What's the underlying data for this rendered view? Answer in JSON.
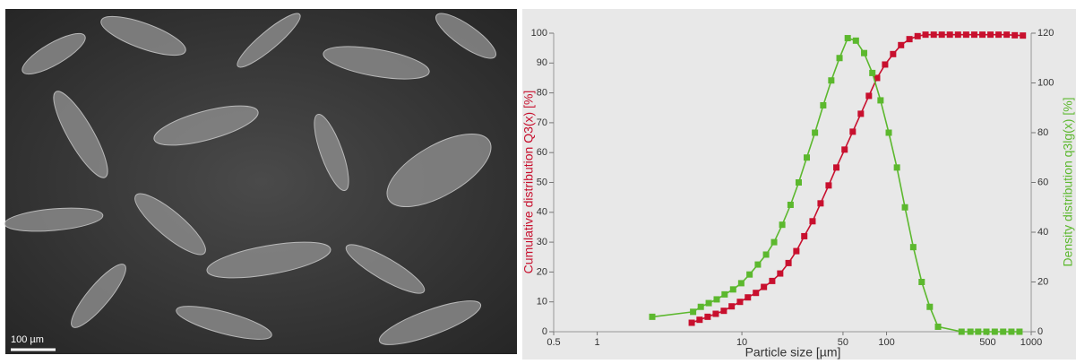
{
  "image": {
    "scale_bar": "100 µm"
  },
  "chart_data": {
    "type": "line",
    "xlabel": "Particle size [µm]",
    "ylabel": "Cumulative distribution Q3(x) [%]",
    "y2label": "Density distribution q3lg(x) [%]",
    "xscale": "log",
    "xlim": [
      0.5,
      1000
    ],
    "xticks": [
      0.5,
      1,
      10,
      50,
      100,
      500,
      1000
    ],
    "ylim": [
      0,
      100
    ],
    "yticks": [
      0,
      10,
      20,
      30,
      40,
      50,
      60,
      70,
      80,
      90,
      100
    ],
    "y2lim": [
      0,
      120
    ],
    "y2ticks": [
      0,
      20,
      40,
      60,
      80,
      100,
      120
    ],
    "grid": false,
    "ylabel_color": "#c8102e",
    "y2label_color": "#5cb82e",
    "series": [
      {
        "color": "#c8102e",
        "x": [
          4.5,
          5.1,
          5.8,
          6.6,
          7.5,
          8.5,
          9.7,
          11,
          12.5,
          14.2,
          16.2,
          18.4,
          21,
          23.8,
          27,
          30.8,
          35,
          39.8,
          45,
          51.3,
          58.4,
          66.4,
          75.5,
          86,
          97.7,
          111,
          126,
          144,
          164,
          186,
          212,
          241,
          274,
          312,
          355,
          404,
          460,
          523,
          595,
          677,
          770,
          876
        ],
        "values": [
          3,
          4,
          5,
          6,
          7,
          8.5,
          10,
          11.5,
          13,
          15,
          17,
          19.5,
          23,
          27,
          32,
          37,
          43,
          49,
          55,
          61,
          67,
          73,
          79,
          85,
          89.5,
          93,
          96,
          98,
          99,
          99.5,
          99.5,
          99.5,
          99.5,
          99.5,
          99.5,
          99.5,
          99.5,
          99.5,
          99.5,
          99.5,
          99.3,
          99.2
        ]
      },
      {
        "color": "#5cb82e",
        "axis": "y2",
        "x": [
          2.4,
          4.6,
          5.2,
          5.9,
          6.7,
          7.6,
          8.7,
          9.9,
          11.3,
          12.9,
          14.7,
          16.7,
          19,
          21.7,
          24.7,
          28.1,
          32,
          36.5,
          41.5,
          47.3,
          53.9,
          61.4,
          70,
          79.8,
          90.9,
          103.6,
          118,
          134,
          153,
          175,
          199,
          227,
          330,
          380,
          430,
          490,
          560,
          640,
          730,
          830
        ],
        "values": [
          6,
          8,
          10,
          11.5,
          13,
          15,
          17,
          19.5,
          23,
          27,
          31,
          36,
          43,
          51,
          60,
          70,
          80,
          91,
          101,
          110,
          118,
          117,
          112,
          104,
          93,
          80,
          66,
          50,
          34,
          20,
          10,
          2,
          0,
          0,
          0,
          0,
          0,
          0,
          0,
          0
        ]
      }
    ]
  }
}
